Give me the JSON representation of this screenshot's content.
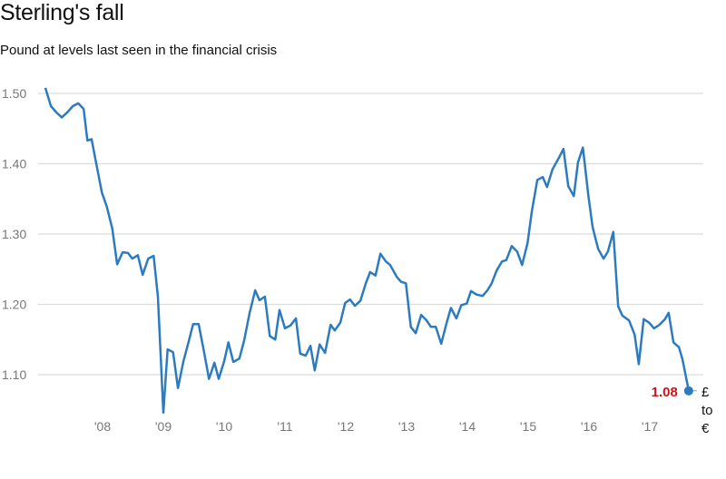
{
  "chart_data": {
    "type": "line",
    "title": "Sterling's fall",
    "subtitle": "Pound at levels last seen in the financial crisis",
    "xlabel": "",
    "ylabel": "",
    "ylim": [
      1.04,
      1.51
    ],
    "xlim": [
      2007.0,
      2017.7
    ],
    "grid": true,
    "yticks": [
      1.1,
      1.2,
      1.3,
      1.4,
      1.5
    ],
    "ytick_labels": [
      "1.10",
      "1.20",
      "1.30",
      "1.40",
      "1.50"
    ],
    "xticks": [
      2008,
      2009,
      2010,
      2011,
      2012,
      2013,
      2014,
      2015,
      2016,
      2017
    ],
    "xtick_labels": [
      "'08",
      "'09",
      "'10",
      "'11",
      "'12",
      "'13",
      "'14",
      "'15",
      "'16",
      "'17"
    ],
    "series": [
      {
        "name": "£ to €",
        "color": "#2c7bbf",
        "x": [
          2007.06,
          2007.15,
          2007.24,
          2007.33,
          2007.42,
          2007.51,
          2007.6,
          2007.69,
          2007.75,
          2007.82,
          2007.91,
          2007.99,
          2008.07,
          2008.16,
          2008.24,
          2008.33,
          2008.42,
          2008.49,
          2008.58,
          2008.66,
          2008.75,
          2008.84,
          2008.91,
          2009.0,
          2009.07,
          2009.16,
          2009.24,
          2009.33,
          2009.42,
          2009.49,
          2009.58,
          2009.67,
          2009.75,
          2009.84,
          2009.91,
          2010.0,
          2010.07,
          2010.15,
          2010.25,
          2010.33,
          2010.42,
          2010.51,
          2010.58,
          2010.67,
          2010.75,
          2010.84,
          2010.91,
          2011.0,
          2011.09,
          2011.18,
          2011.25,
          2011.34,
          2011.42,
          2011.49,
          2011.57,
          2011.66,
          2011.75,
          2011.82,
          2011.91,
          2011.99,
          2012.07,
          2012.15,
          2012.24,
          2012.33,
          2012.4,
          2012.49,
          2012.57,
          2012.66,
          2012.73,
          2012.84,
          2012.91,
          2012.99,
          2013.07,
          2013.15,
          2013.24,
          2013.33,
          2013.4,
          2013.48,
          2013.57,
          2013.66,
          2013.73,
          2013.82,
          2013.9,
          2013.99,
          2014.06,
          2014.15,
          2014.25,
          2014.33,
          2014.4,
          2014.48,
          2014.57,
          2014.64,
          2014.73,
          2014.82,
          2014.9,
          2014.99,
          2015.06,
          2015.15,
          2015.24,
          2015.31,
          2015.4,
          2015.49,
          2015.58,
          2015.66,
          2015.75,
          2015.82,
          2015.9,
          2015.99,
          2016.06,
          2016.15,
          2016.24,
          2016.31,
          2016.4,
          2016.48,
          2016.55,
          2016.66,
          2016.75,
          2016.82,
          2016.9,
          2016.99,
          2017.07,
          2017.16,
          2017.25,
          2017.31,
          2017.39,
          2017.48,
          2017.54,
          2017.64
        ],
        "y": [
          1.508,
          1.482,
          1.473,
          1.466,
          1.473,
          1.482,
          1.486,
          1.478,
          1.433,
          1.435,
          1.394,
          1.359,
          1.339,
          1.308,
          1.257,
          1.274,
          1.273,
          1.265,
          1.27,
          1.242,
          1.265,
          1.269,
          1.211,
          1.046,
          1.136,
          1.132,
          1.081,
          1.119,
          1.148,
          1.172,
          1.172,
          1.132,
          1.094,
          1.117,
          1.094,
          1.119,
          1.146,
          1.118,
          1.123,
          1.149,
          1.188,
          1.22,
          1.206,
          1.211,
          1.155,
          1.15,
          1.192,
          1.166,
          1.17,
          1.18,
          1.13,
          1.127,
          1.141,
          1.106,
          1.143,
          1.131,
          1.171,
          1.163,
          1.174,
          1.202,
          1.207,
          1.198,
          1.205,
          1.23,
          1.246,
          1.241,
          1.272,
          1.261,
          1.256,
          1.239,
          1.232,
          1.23,
          1.168,
          1.159,
          1.185,
          1.177,
          1.168,
          1.168,
          1.144,
          1.174,
          1.195,
          1.18,
          1.199,
          1.201,
          1.219,
          1.214,
          1.212,
          1.22,
          1.23,
          1.248,
          1.261,
          1.263,
          1.283,
          1.275,
          1.256,
          1.287,
          1.332,
          1.377,
          1.381,
          1.367,
          1.392,
          1.406,
          1.421,
          1.368,
          1.354,
          1.402,
          1.423,
          1.355,
          1.31,
          1.279,
          1.265,
          1.275,
          1.303,
          1.197,
          1.184,
          1.177,
          1.157,
          1.115,
          1.179,
          1.174,
          1.166,
          1.171,
          1.179,
          1.188,
          1.146,
          1.139,
          1.121,
          1.077
        ]
      }
    ],
    "annotations": {
      "end_value": "1.08",
      "end_value_color": "#d0111b",
      "unit_lines": [
        "£",
        "to",
        "€"
      ]
    }
  }
}
